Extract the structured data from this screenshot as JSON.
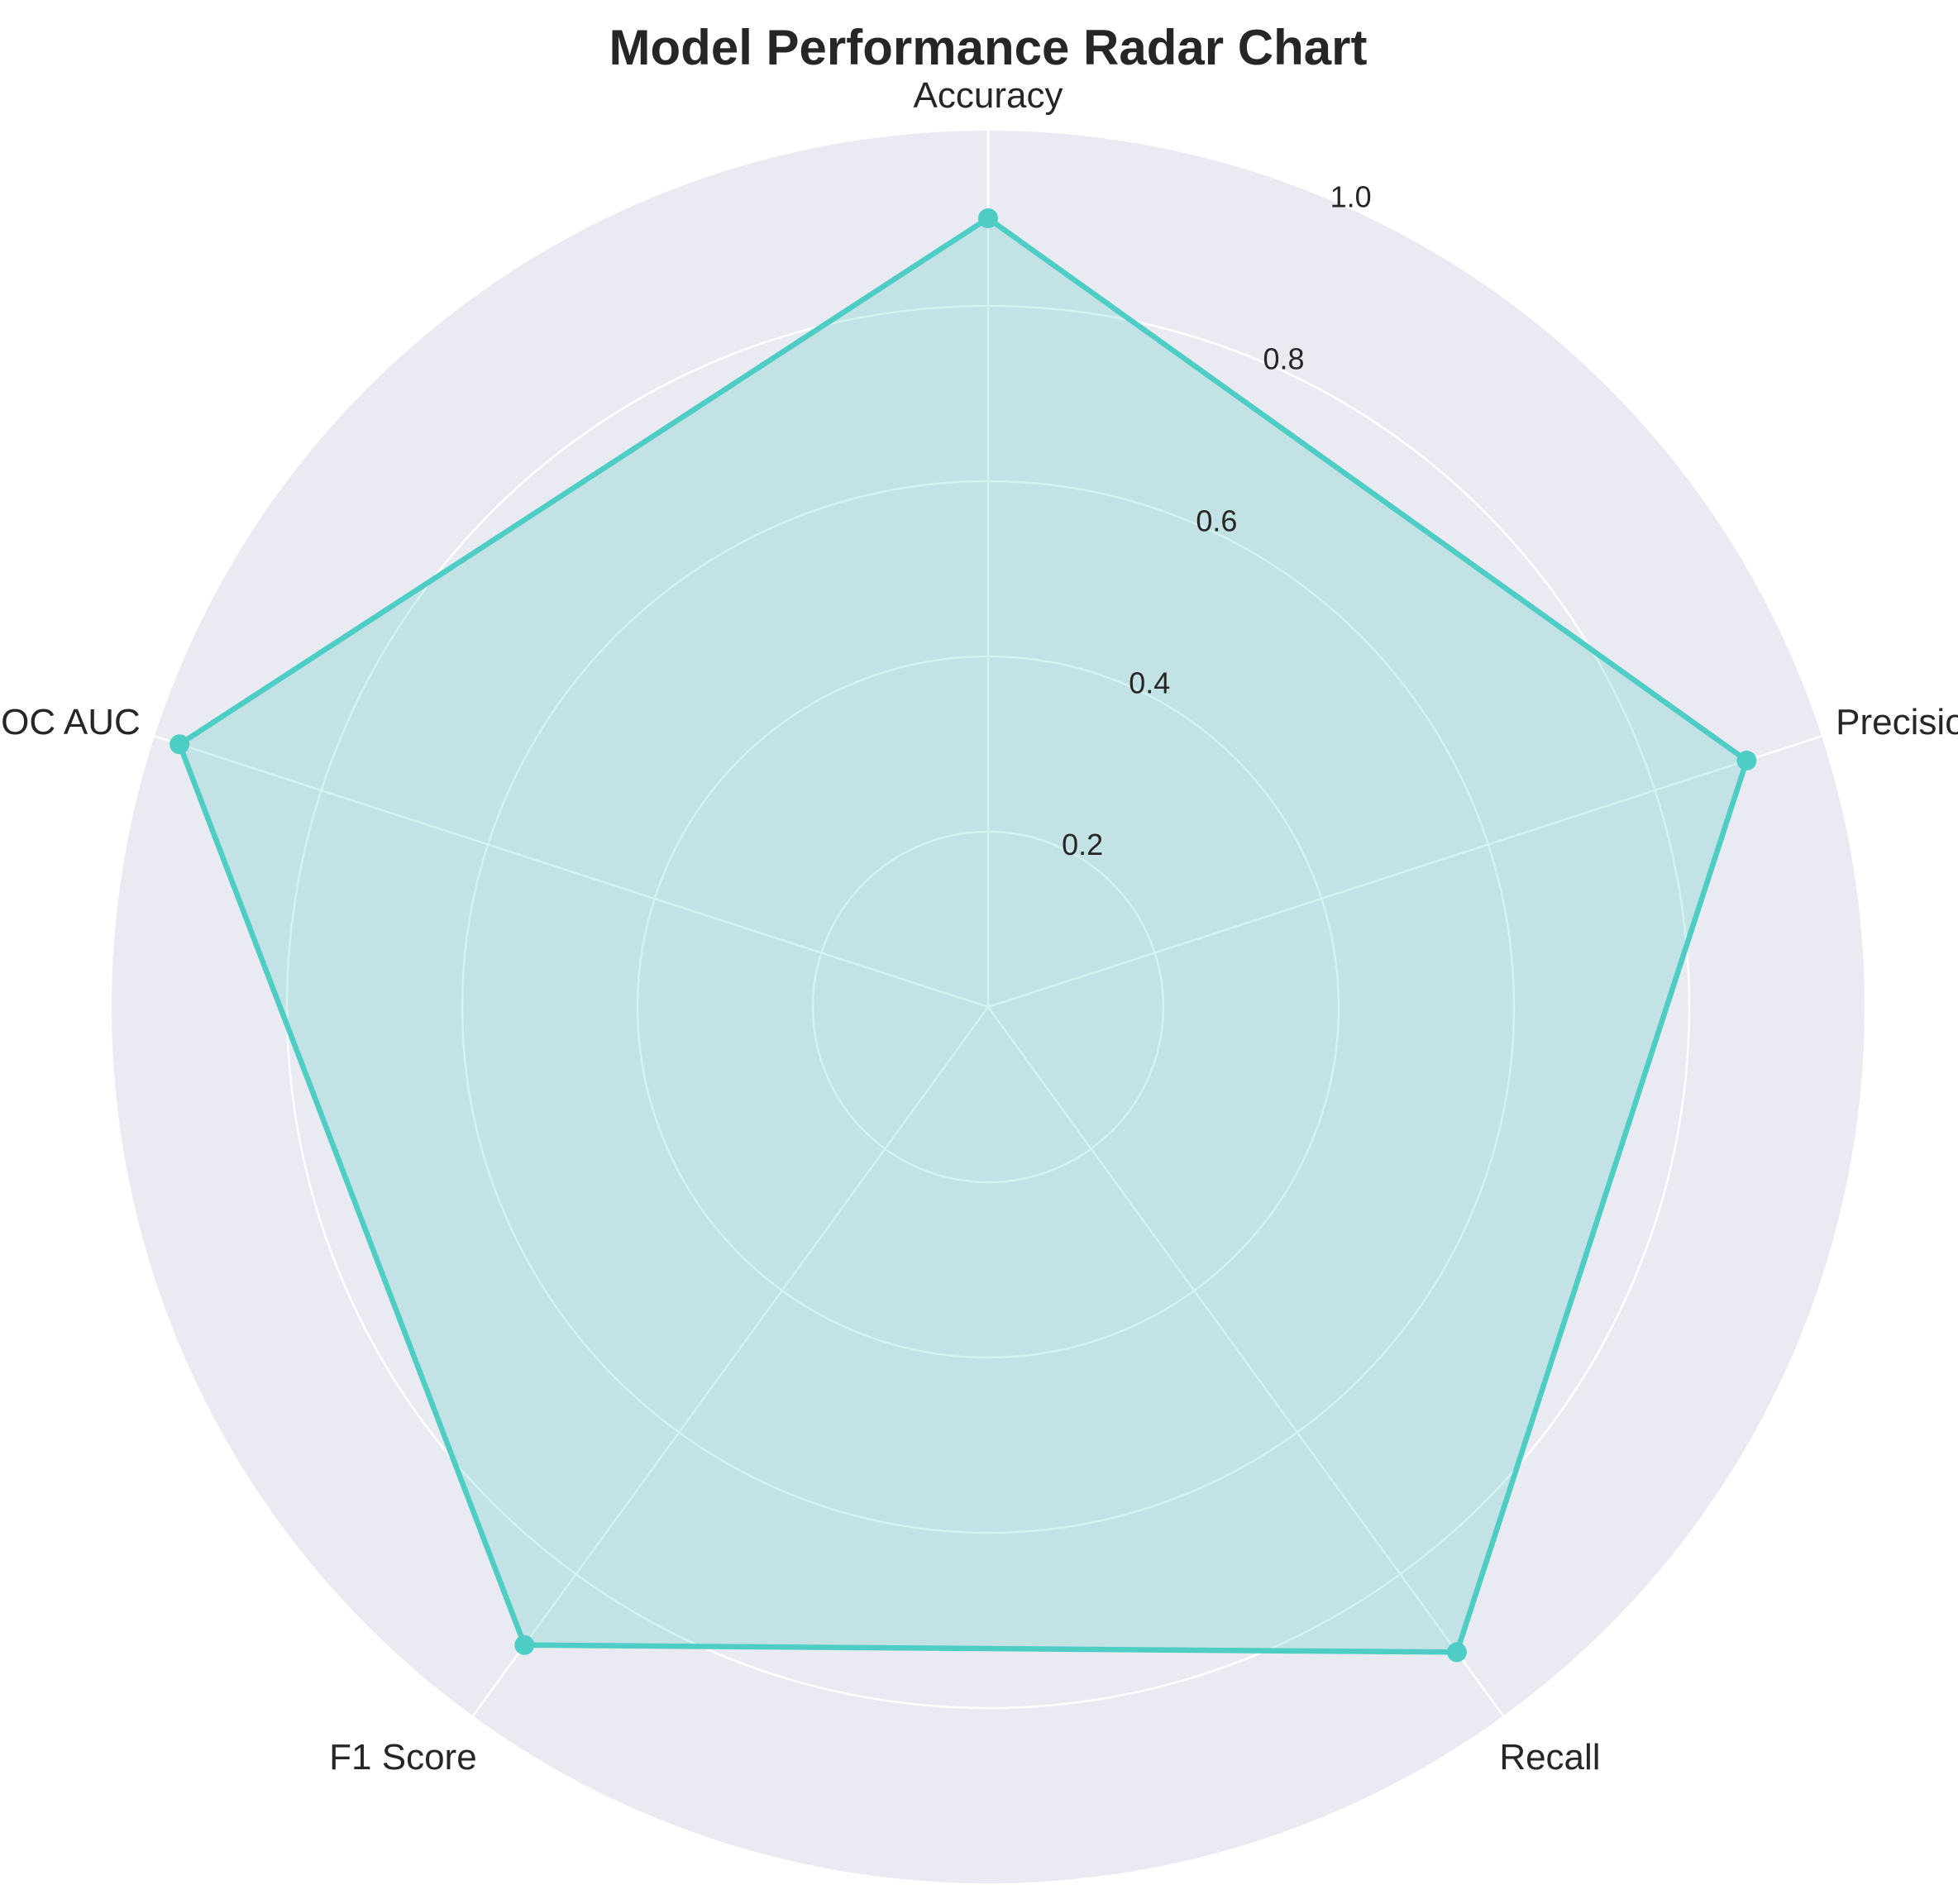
{
  "chart_data": {
    "type": "radar",
    "title": "Model Performance Radar Chart",
    "categories": [
      "Accuracy",
      "Precision",
      "Recall",
      "F1 Score",
      "ROC AUC"
    ],
    "series": [
      {
        "values": [
          0.9,
          0.91,
          0.91,
          0.9,
          0.97
        ]
      }
    ],
    "rlim": [
      0,
      1.0
    ],
    "r_ticks": [
      0.2,
      0.4,
      0.6,
      0.8,
      1.0
    ],
    "r_tick_labels": [
      "0.2",
      "0.4",
      "0.6",
      "0.8",
      "1.0"
    ],
    "grid": true,
    "colors": {
      "series_line": "#4ecdc4",
      "series_fill": "#4ecdc4",
      "plot_background": "#eaeaf2",
      "grid": "#ffffff",
      "text": "#262626"
    }
  }
}
